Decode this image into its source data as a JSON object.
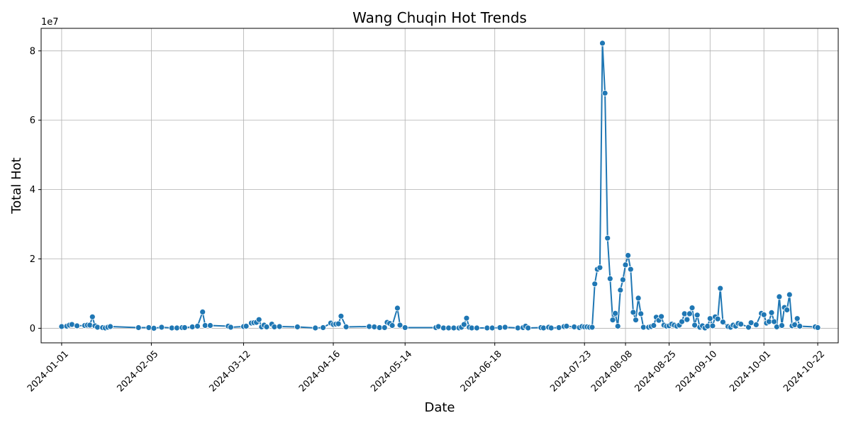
{
  "chart_data": {
    "type": "line",
    "title": "Wang Chuqin Hot Trends",
    "xlabel": "Date",
    "ylabel": "Total Hot",
    "y_offset_label": "1e7",
    "x_tick_labels": [
      "2024-01-01",
      "2024-02-05",
      "2024-03-12",
      "2024-04-16",
      "2024-05-14",
      "2024-06-18",
      "2024-07-23",
      "2024-08-08",
      "2024-08-25",
      "2024-09-10",
      "2024-10-01",
      "2024-10-22"
    ],
    "y_ticks": [
      0,
      20000000,
      40000000,
      60000000,
      80000000
    ],
    "y_tick_labels": [
      "0",
      "2",
      "4",
      "6",
      "8"
    ],
    "ylim": [
      -4200000,
      86500000
    ],
    "xlim": [
      "2023-12-24",
      "2024-10-30"
    ],
    "grid": true,
    "series": [
      {
        "color": "#1f77b4",
        "marker": "circle",
        "points": [
          [
            "2024-01-01",
            500000
          ],
          [
            "2024-01-03",
            600000
          ],
          [
            "2024-01-04",
            900000
          ],
          [
            "2024-01-05",
            1100000
          ],
          [
            "2024-01-07",
            700000
          ],
          [
            "2024-01-10",
            800000
          ],
          [
            "2024-01-11",
            900000
          ],
          [
            "2024-01-12",
            900000
          ],
          [
            "2024-01-13",
            3300000
          ],
          [
            "2024-01-14",
            700000
          ],
          [
            "2024-01-15",
            300000
          ],
          [
            "2024-01-17",
            200000
          ],
          [
            "2024-01-18",
            100000
          ],
          [
            "2024-01-19",
            300000
          ],
          [
            "2024-01-20",
            500000
          ],
          [
            "2024-01-31",
            200000
          ],
          [
            "2024-02-04",
            200000
          ],
          [
            "2024-02-06",
            0
          ],
          [
            "2024-02-09",
            300000
          ],
          [
            "2024-02-13",
            100000
          ],
          [
            "2024-02-15",
            100000
          ],
          [
            "2024-02-17",
            200000
          ],
          [
            "2024-02-18",
            200000
          ],
          [
            "2024-02-21",
            400000
          ],
          [
            "2024-02-23",
            600000
          ],
          [
            "2024-02-25",
            4700000
          ],
          [
            "2024-02-26",
            800000
          ],
          [
            "2024-02-28",
            800000
          ],
          [
            "2024-03-06",
            600000
          ],
          [
            "2024-03-07",
            300000
          ],
          [
            "2024-03-12",
            500000
          ],
          [
            "2024-03-13",
            600000
          ],
          [
            "2024-03-15",
            1500000
          ],
          [
            "2024-03-16",
            1600000
          ],
          [
            "2024-03-17",
            1700000
          ],
          [
            "2024-03-18",
            2500000
          ],
          [
            "2024-03-19",
            400000
          ],
          [
            "2024-03-20",
            900000
          ],
          [
            "2024-03-21",
            400000
          ],
          [
            "2024-03-23",
            1200000
          ],
          [
            "2024-03-24",
            400000
          ],
          [
            "2024-03-26",
            500000
          ],
          [
            "2024-04-02",
            400000
          ],
          [
            "2024-04-09",
            100000
          ],
          [
            "2024-04-12",
            200000
          ],
          [
            "2024-04-15",
            1500000
          ],
          [
            "2024-04-16",
            1100000
          ],
          [
            "2024-04-17",
            1200000
          ],
          [
            "2024-04-18",
            1300000
          ],
          [
            "2024-04-19",
            3500000
          ],
          [
            "2024-04-21",
            400000
          ],
          [
            "2024-04-30",
            500000
          ],
          [
            "2024-05-02",
            400000
          ],
          [
            "2024-05-04",
            200000
          ],
          [
            "2024-05-06",
            200000
          ],
          [
            "2024-05-07",
            1700000
          ],
          [
            "2024-05-08",
            1400000
          ],
          [
            "2024-05-09",
            800000
          ],
          [
            "2024-05-11",
            5800000
          ],
          [
            "2024-05-12",
            900000
          ],
          [
            "2024-05-14",
            200000
          ],
          [
            "2024-05-26",
            200000
          ],
          [
            "2024-05-27",
            500000
          ],
          [
            "2024-05-29",
            100000
          ],
          [
            "2024-05-31",
            100000
          ],
          [
            "2024-06-02",
            100000
          ],
          [
            "2024-06-04",
            100000
          ],
          [
            "2024-06-05",
            300000
          ],
          [
            "2024-06-06",
            1100000
          ],
          [
            "2024-06-07",
            2900000
          ],
          [
            "2024-06-08",
            300000
          ],
          [
            "2024-06-09",
            100000
          ],
          [
            "2024-06-11",
            100000
          ],
          [
            "2024-06-15",
            100000
          ],
          [
            "2024-06-17",
            100000
          ],
          [
            "2024-06-20",
            200000
          ],
          [
            "2024-06-22",
            300000
          ],
          [
            "2024-06-27",
            100000
          ],
          [
            "2024-06-29",
            200000
          ],
          [
            "2024-06-30",
            600000
          ],
          [
            "2024-07-01",
            100000
          ],
          [
            "2024-07-06",
            200000
          ],
          [
            "2024-07-07",
            100000
          ],
          [
            "2024-07-09",
            300000
          ],
          [
            "2024-07-10",
            100000
          ],
          [
            "2024-07-13",
            200000
          ],
          [
            "2024-07-15",
            500000
          ],
          [
            "2024-07-16",
            600000
          ],
          [
            "2024-07-19",
            400000
          ],
          [
            "2024-07-21",
            200000
          ],
          [
            "2024-07-22",
            500000
          ],
          [
            "2024-07-23",
            400000
          ],
          [
            "2024-07-24",
            400000
          ],
          [
            "2024-07-25",
            300000
          ],
          [
            "2024-07-26",
            300000
          ],
          [
            "2024-07-27",
            12800000
          ],
          [
            "2024-07-28",
            17000000
          ],
          [
            "2024-07-29",
            17500000
          ],
          [
            "2024-07-30",
            82200000
          ],
          [
            "2024-07-31",
            67800000
          ],
          [
            "2024-08-01",
            26000000
          ],
          [
            "2024-08-02",
            14300000
          ],
          [
            "2024-08-03",
            2400000
          ],
          [
            "2024-08-04",
            4300000
          ],
          [
            "2024-08-05",
            600000
          ],
          [
            "2024-08-06",
            11000000
          ],
          [
            "2024-08-07",
            14000000
          ],
          [
            "2024-08-08",
            18300000
          ],
          [
            "2024-08-09",
            21000000
          ],
          [
            "2024-08-10",
            17000000
          ],
          [
            "2024-08-11",
            4600000
          ],
          [
            "2024-08-12",
            2400000
          ],
          [
            "2024-08-13",
            8700000
          ],
          [
            "2024-08-14",
            4200000
          ],
          [
            "2024-08-15",
            300000
          ],
          [
            "2024-08-17",
            300000
          ],
          [
            "2024-08-18",
            500000
          ],
          [
            "2024-08-19",
            800000
          ],
          [
            "2024-08-20",
            3200000
          ],
          [
            "2024-08-21",
            2300000
          ],
          [
            "2024-08-22",
            3400000
          ],
          [
            "2024-08-23",
            900000
          ],
          [
            "2024-08-24",
            600000
          ],
          [
            "2024-08-25",
            700000
          ],
          [
            "2024-08-26",
            1200000
          ],
          [
            "2024-08-27",
            900000
          ],
          [
            "2024-08-28",
            600000
          ],
          [
            "2024-08-29",
            900000
          ],
          [
            "2024-08-30",
            1900000
          ],
          [
            "2024-08-31",
            4200000
          ],
          [
            "2024-09-01",
            2500000
          ],
          [
            "2024-09-02",
            4200000
          ],
          [
            "2024-09-03",
            5900000
          ],
          [
            "2024-09-04",
            900000
          ],
          [
            "2024-09-05",
            3800000
          ],
          [
            "2024-09-06",
            300000
          ],
          [
            "2024-09-07",
            700000
          ],
          [
            "2024-09-08",
            100000
          ],
          [
            "2024-09-09",
            600000
          ],
          [
            "2024-09-10",
            2800000
          ],
          [
            "2024-09-11",
            700000
          ],
          [
            "2024-09-12",
            3300000
          ],
          [
            "2024-09-13",
            2700000
          ],
          [
            "2024-09-14",
            11500000
          ],
          [
            "2024-09-15",
            1800000
          ],
          [
            "2024-09-17",
            500000
          ],
          [
            "2024-09-18",
            300000
          ],
          [
            "2024-09-19",
            900000
          ],
          [
            "2024-09-20",
            600000
          ],
          [
            "2024-09-21",
            1400000
          ],
          [
            "2024-09-22",
            1200000
          ],
          [
            "2024-09-25",
            300000
          ],
          [
            "2024-09-26",
            1600000
          ],
          [
            "2024-09-28",
            1000000
          ],
          [
            "2024-09-30",
            4300000
          ],
          [
            "2024-10-01",
            3900000
          ],
          [
            "2024-10-02",
            1500000
          ],
          [
            "2024-10-03",
            1900000
          ],
          [
            "2024-10-04",
            4500000
          ],
          [
            "2024-10-05",
            1900000
          ],
          [
            "2024-10-06",
            400000
          ],
          [
            "2024-10-07",
            9100000
          ],
          [
            "2024-10-08",
            800000
          ],
          [
            "2024-10-09",
            6000000
          ],
          [
            "2024-10-10",
            5300000
          ],
          [
            "2024-10-11",
            9700000
          ],
          [
            "2024-10-12",
            700000
          ],
          [
            "2024-10-13",
            1000000
          ],
          [
            "2024-10-14",
            2800000
          ],
          [
            "2024-10-15",
            600000
          ],
          [
            "2024-10-21",
            400000
          ],
          [
            "2024-10-22",
            200000
          ]
        ]
      }
    ]
  }
}
